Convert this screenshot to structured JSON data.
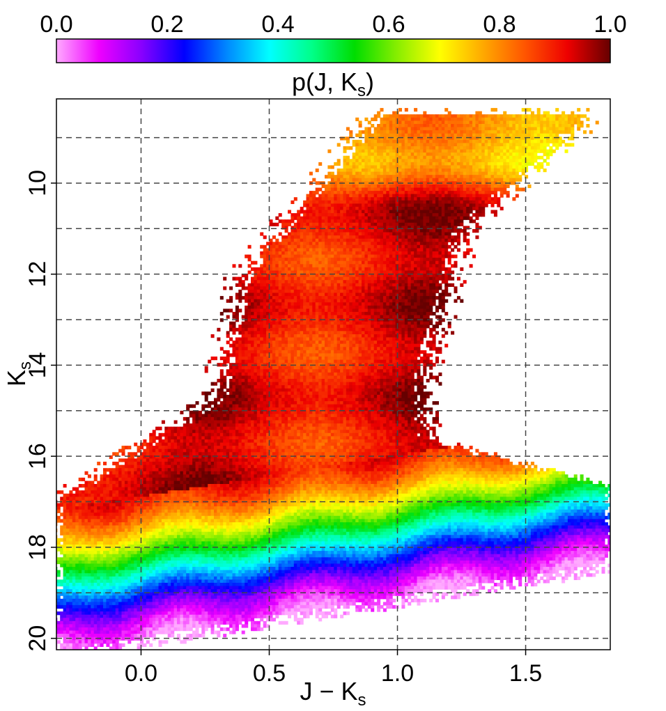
{
  "chart_data": {
    "type": "heatmap",
    "title": "",
    "xlabel": "J − K",
    "xlabel_sub": "s",
    "ylabel": "K",
    "ylabel_sub": "s",
    "xlim": [
      -0.33,
      1.83
    ],
    "ylim": [
      20.25,
      8.15
    ],
    "y_inverted": true,
    "grid": true,
    "x_ticks": [
      0.0,
      0.5,
      1.0,
      1.5
    ],
    "x_tick_labels": [
      "0.0",
      "0.5",
      "1.0",
      "1.5"
    ],
    "y_ticks": [
      10,
      12,
      14,
      16,
      18,
      20
    ],
    "y_tick_labels": [
      "10",
      "12",
      "14",
      "16",
      "18",
      "20"
    ],
    "x_gridlines": [
      0.0,
      0.5,
      1.0,
      1.5
    ],
    "y_gridlines": [
      9,
      10,
      11,
      12,
      13,
      14,
      15,
      16,
      17,
      18,
      19,
      20
    ],
    "colorbar": {
      "label": "p(J, K",
      "label_sub": "s",
      "label_close": ")",
      "range": [
        0.0,
        1.0
      ],
      "ticks": [
        0.0,
        0.2,
        0.4,
        0.6,
        0.8,
        1.0
      ],
      "tick_labels": [
        "0.0",
        "0.2",
        "0.4",
        "0.6",
        "0.8",
        "1.0"
      ],
      "colors": [
        "#ffaaff",
        "#ee00ff",
        "#8800ff",
        "#0000ff",
        "#0088ff",
        "#00ffff",
        "#00ff88",
        "#00dd00",
        "#88ee00",
        "#ffff00",
        "#ffaa00",
        "#ff5500",
        "#ee0000",
        "#660000"
      ]
    },
    "density_description_values": {
      "completeness_by_Ks": [
        {
          "Ks": 9.0,
          "p": 0.92
        },
        {
          "Ks": 12.0,
          "p": 0.95
        },
        {
          "Ks": 14.0,
          "p": 0.93
        },
        {
          "Ks": 15.5,
          "p": 0.9
        },
        {
          "Ks": 16.5,
          "p": 0.82
        },
        {
          "Ks": 17.0,
          "p": 0.72
        },
        {
          "Ks": 17.5,
          "p": 0.6
        },
        {
          "Ks": 18.0,
          "p": 0.45
        },
        {
          "Ks": 18.5,
          "p": 0.25
        },
        {
          "Ks": 19.0,
          "p": 0.1
        },
        {
          "Ks": 19.4,
          "p": 0.02
        }
      ]
    }
  }
}
